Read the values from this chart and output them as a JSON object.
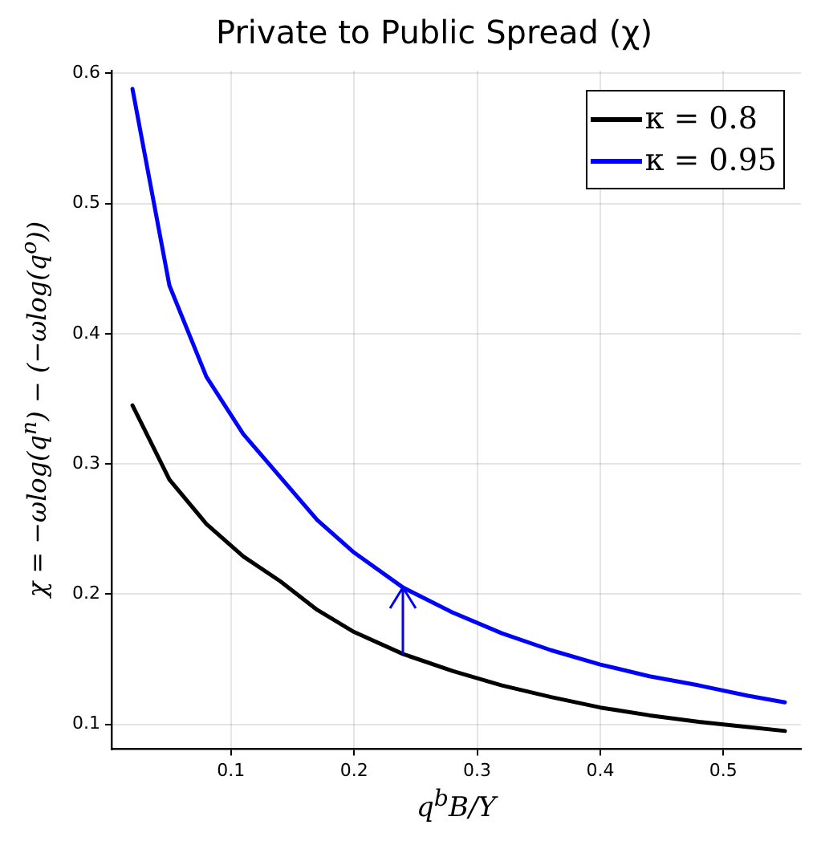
{
  "chart_data": {
    "type": "line",
    "title": "Private to Public Spread (χ)",
    "xlabel": "q$^{b}$B/Y",
    "ylabel": "χ = −ωlog(q$^{n}$) − (−ωlog(q$^{o}$))",
    "x": [
      0.02,
      0.05,
      0.08,
      0.11,
      0.14,
      0.17,
      0.2,
      0.24,
      0.28,
      0.32,
      0.36,
      0.4,
      0.44,
      0.48,
      0.52,
      0.55
    ],
    "series": [
      {
        "name": "κ = 0.8",
        "color": "#000000",
        "values": [
          0.345,
          0.288,
          0.254,
          0.229,
          0.21,
          0.188,
          0.171,
          0.154,
          0.141,
          0.13,
          0.121,
          0.113,
          0.107,
          0.102,
          0.098,
          0.095
        ]
      },
      {
        "name": "κ = 0.95",
        "color": "#0000ff",
        "values": [
          0.588,
          0.437,
          0.367,
          0.323,
          0.29,
          0.257,
          0.232,
          0.205,
          0.186,
          0.17,
          0.157,
          0.146,
          0.137,
          0.13,
          0.122,
          0.117
        ]
      }
    ],
    "xlim": [
      0.003,
      0.563
    ],
    "ylim": [
      0.081,
      0.602
    ],
    "xticks": [
      0.1,
      0.2,
      0.3,
      0.4,
      0.5
    ],
    "yticks": [
      0.1,
      0.2,
      0.3,
      0.4,
      0.5,
      0.6
    ],
    "grid": true,
    "legend": "top right",
    "marker": "none",
    "line_style": "solid"
  }
}
